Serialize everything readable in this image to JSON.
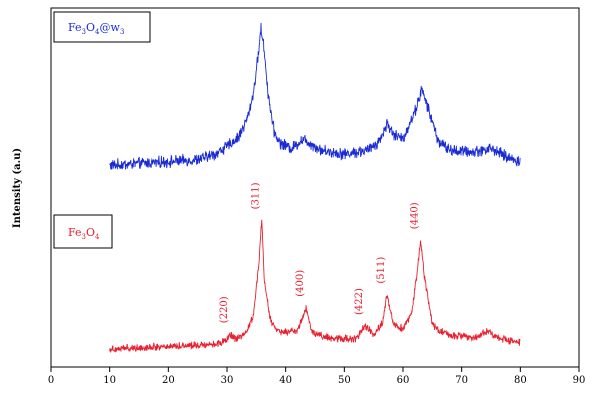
{
  "chart_data": {
    "type": "line",
    "xlabel": "",
    "ylabel": "Intensity (a.u)",
    "xlim": [
      0,
      90
    ],
    "xticks": [
      "0",
      "10",
      "20",
      "30",
      "40",
      "50",
      "60",
      "70",
      "80",
      "90"
    ],
    "y_ticks_shown": false,
    "grid": false,
    "series": [
      {
        "name": "Fe3O4@w3",
        "legend": {
          "main": "Fe",
          "sub1": "3",
          "mid": "O",
          "sub2": "4",
          "tail": "@w",
          "sub3": "3"
        },
        "color": "#1a2bd6",
        "x_range": [
          10,
          80
        ],
        "baseline": 10,
        "noise": 2.4,
        "points": [
          [
            10,
            0
          ],
          [
            20,
            2
          ],
          [
            25,
            3
          ],
          [
            28,
            6
          ],
          [
            30,
            10
          ],
          [
            32,
            15
          ],
          [
            33.5,
            25
          ],
          [
            34.5,
            38
          ],
          [
            35.2,
            55
          ],
          [
            35.8,
            72
          ],
          [
            36.3,
            62
          ],
          [
            37,
            38
          ],
          [
            38,
            18
          ],
          [
            39,
            12
          ],
          [
            41,
            9
          ],
          [
            43,
            14
          ],
          [
            44,
            12
          ],
          [
            46,
            8
          ],
          [
            50,
            6
          ],
          [
            54,
            8
          ],
          [
            56,
            13
          ],
          [
            57.3,
            22
          ],
          [
            58.5,
            16
          ],
          [
            60,
            14
          ],
          [
            62,
            28
          ],
          [
            63.2,
            40
          ],
          [
            64.5,
            28
          ],
          [
            66,
            13
          ],
          [
            68,
            8
          ],
          [
            72,
            7
          ],
          [
            75,
            9
          ],
          [
            78,
            4
          ],
          [
            80,
            2
          ]
        ]
      },
      {
        "name": "Fe3O4",
        "legend": {
          "main": "Fe",
          "sub1": "3",
          "mid": "O",
          "sub2": "4",
          "tail": "",
          "sub3": ""
        },
        "color": "#e8202f",
        "x_range": [
          10,
          80
        ],
        "baseline": 0,
        "noise": 1.8,
        "points": [
          [
            10,
            0
          ],
          [
            28,
            3
          ],
          [
            30,
            5
          ],
          [
            30.5,
            9
          ],
          [
            31.5,
            6
          ],
          [
            33,
            8
          ],
          [
            34.5,
            20
          ],
          [
            35.5,
            55
          ],
          [
            35.9,
            78
          ],
          [
            36.4,
            40
          ],
          [
            37.5,
            16
          ],
          [
            39,
            10
          ],
          [
            42,
            11
          ],
          [
            43.5,
            25
          ],
          [
            44.5,
            10
          ],
          [
            47,
            7
          ],
          [
            52,
            6
          ],
          [
            53.5,
            14
          ],
          [
            55,
            9
          ],
          [
            56.5,
            16
          ],
          [
            57.3,
            33
          ],
          [
            58.3,
            16
          ],
          [
            60,
            12
          ],
          [
            61.5,
            22
          ],
          [
            62.5,
            50
          ],
          [
            63,
            66
          ],
          [
            63.6,
            45
          ],
          [
            65,
            15
          ],
          [
            67,
            9
          ],
          [
            72,
            7
          ],
          [
            74.5,
            11
          ],
          [
            76,
            7
          ],
          [
            80,
            4
          ]
        ]
      }
    ],
    "peak_labels": [
      "(220)",
      "(311)",
      "(400)",
      "(422)",
      "(511)",
      "(440)"
    ],
    "peak_positions": [
      30.5,
      35.9,
      43.5,
      53.5,
      57.3,
      63.0
    ]
  }
}
